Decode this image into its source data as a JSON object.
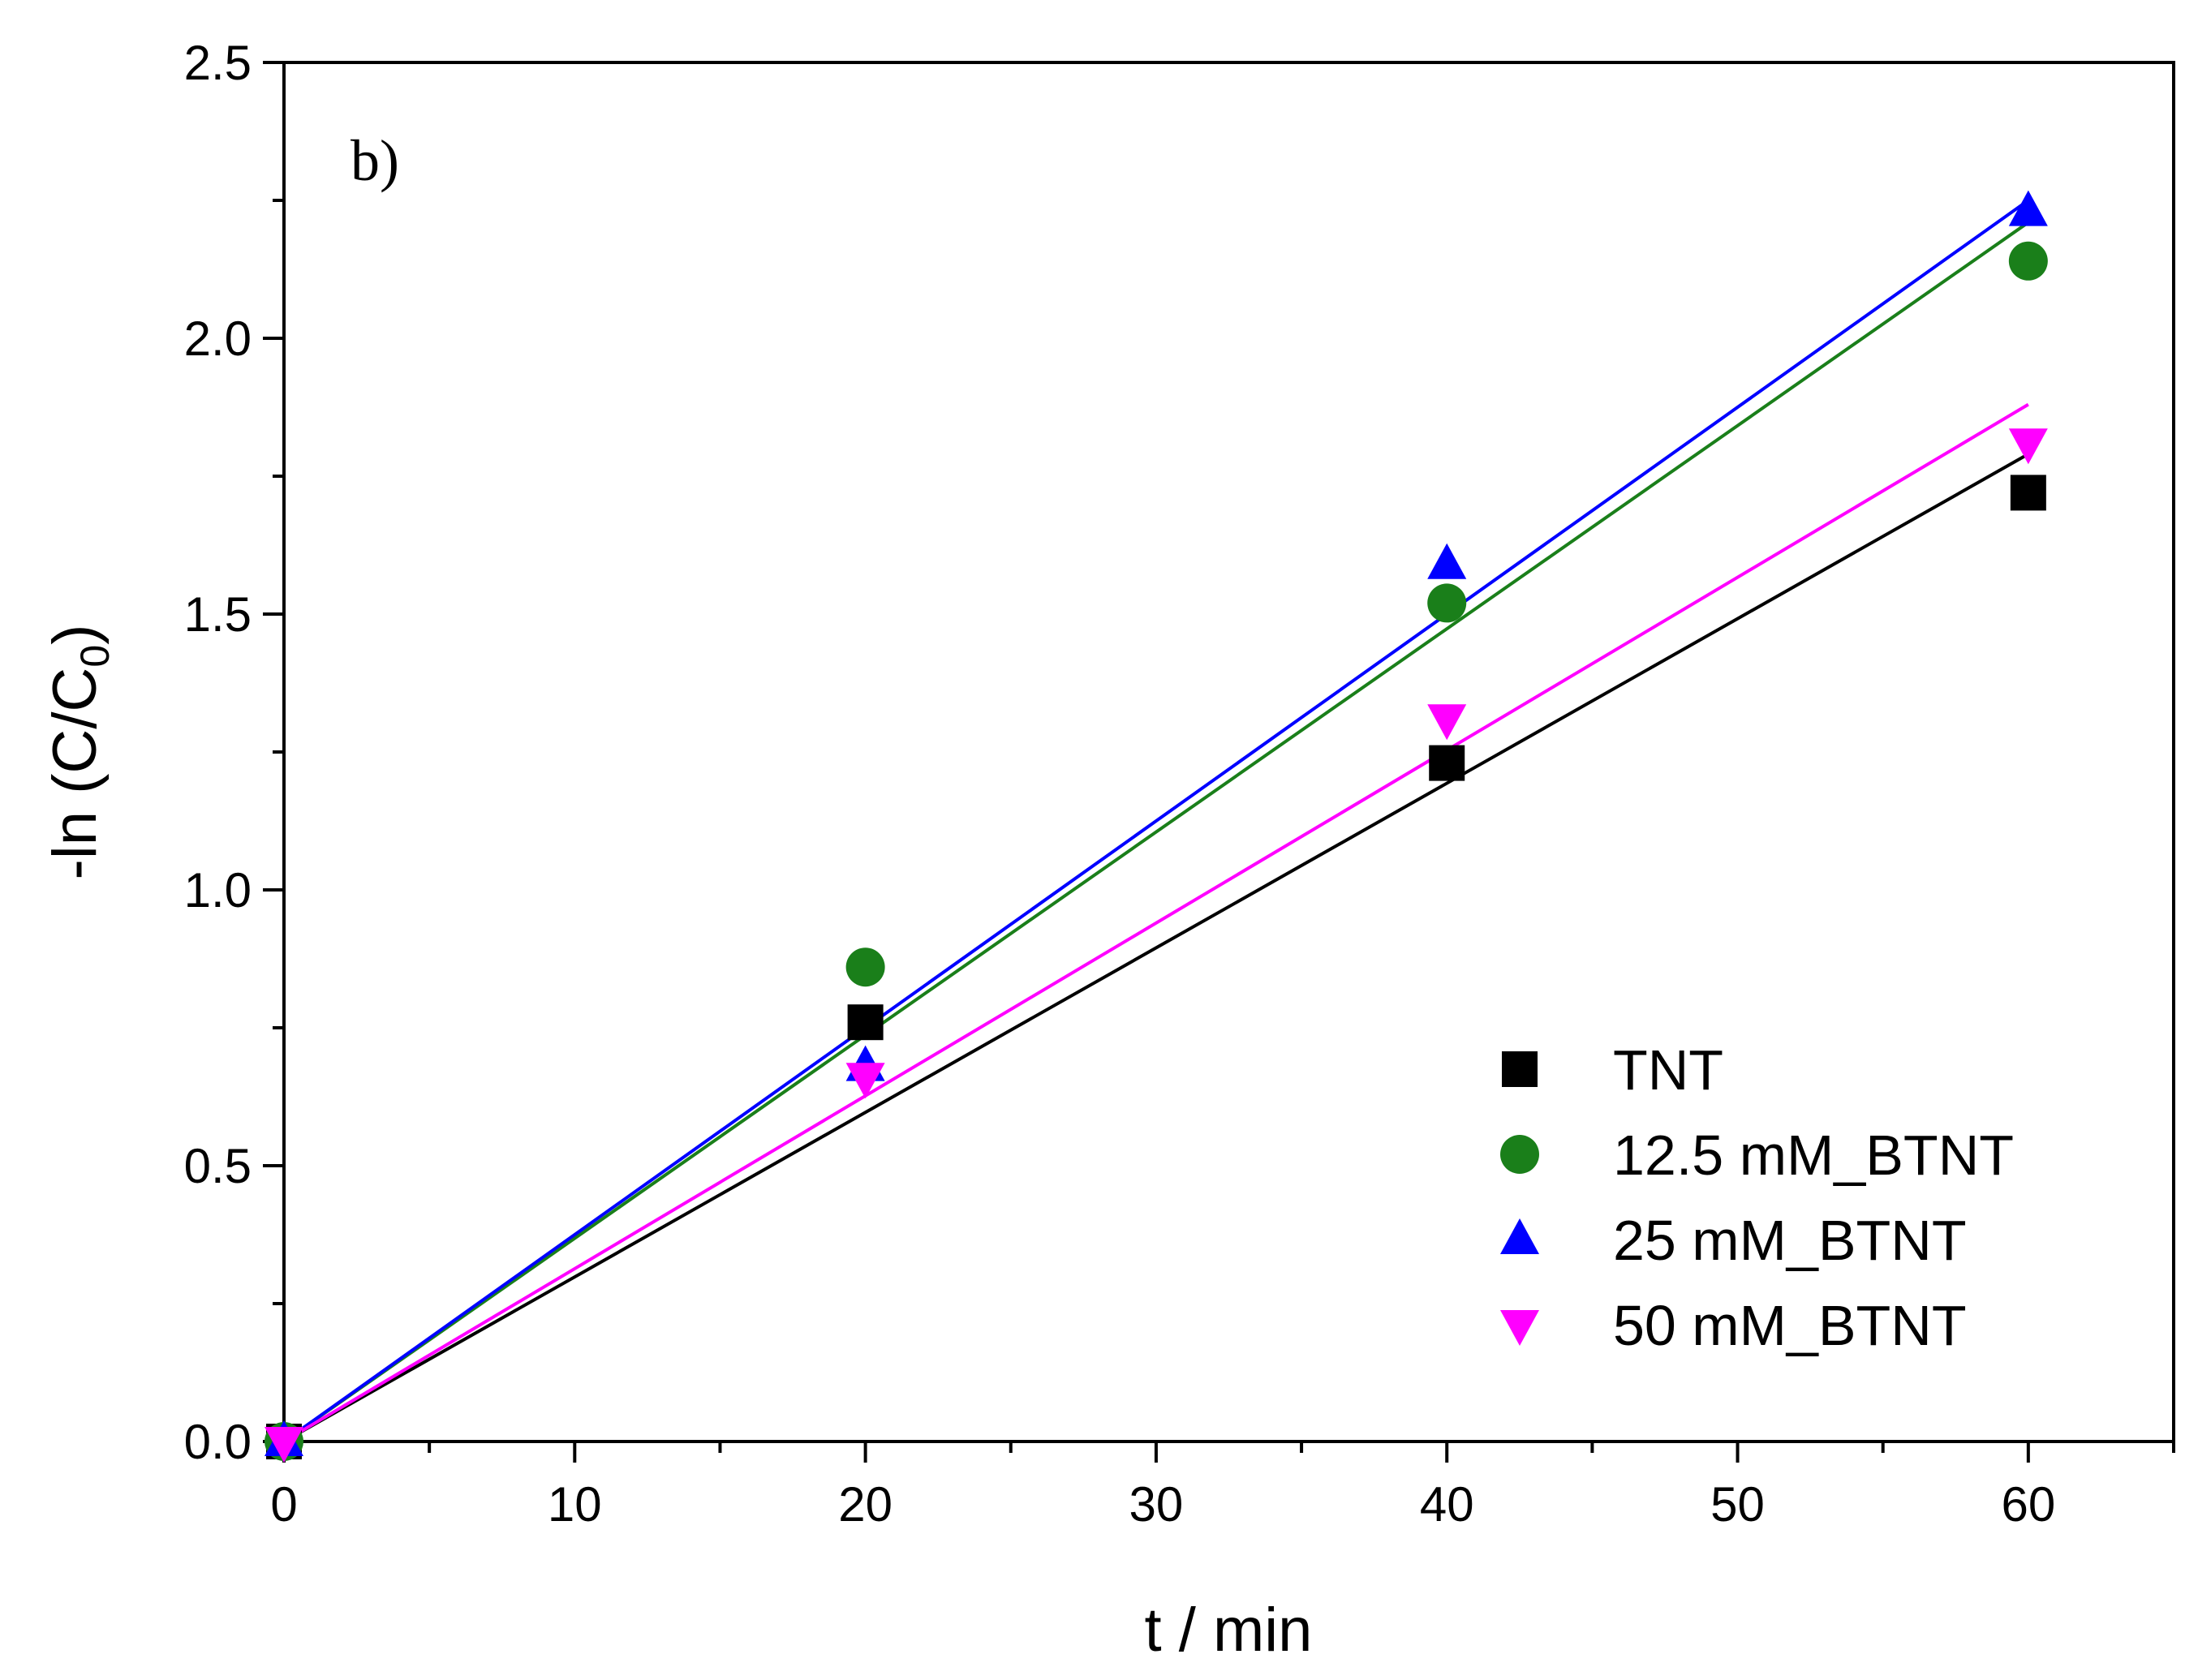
{
  "chart_data": {
    "type": "scatter",
    "panel_label": "b)",
    "xlabel": "t / min",
    "ylabel": {
      "main": "-ln (C/C",
      "sub": "0",
      "close": ")"
    },
    "xlim": [
      0,
      65
    ],
    "ylim": [
      0,
      2.5
    ],
    "x_ticks": [
      0,
      10,
      20,
      30,
      40,
      50,
      60
    ],
    "x_tick_labels": [
      "0",
      "10",
      "20",
      "30",
      "40",
      "50",
      "60"
    ],
    "x_minor_ticks": [
      5,
      15,
      25,
      35,
      45,
      55,
      65
    ],
    "y_ticks": [
      0,
      0.5,
      1.0,
      1.5,
      2.0,
      2.5
    ],
    "y_tick_labels": [
      "0.0",
      "0.5",
      "1.0",
      "1.5",
      "2.0",
      "2.5"
    ],
    "y_minor_ticks": [
      0.25,
      0.75,
      1.25,
      1.75,
      2.25
    ],
    "grid": false,
    "legend_position": "lower-right",
    "series": [
      {
        "name": "TNT",
        "marker": "square",
        "color": "#000000",
        "x": [
          0,
          20,
          40,
          60
        ],
        "y": [
          0.0,
          0.76,
          1.23,
          1.72
        ],
        "fit": {
          "x": [
            0,
            60
          ],
          "y": [
            0.0,
            1.79
          ]
        }
      },
      {
        "name": "12.5 mM_BTNT",
        "marker": "circle",
        "color": "#1a7f1a",
        "x": [
          0,
          20,
          40,
          60
        ],
        "y": [
          0.0,
          0.86,
          1.52,
          2.14
        ],
        "fit": {
          "x": [
            0,
            60
          ],
          "y": [
            0.0,
            2.21
          ]
        }
      },
      {
        "name": "25 mM_BTNT",
        "marker": "triangle-up",
        "color": "#0000ff",
        "x": [
          0,
          20,
          40,
          60
        ],
        "y": [
          0.0,
          0.68,
          1.59,
          2.23
        ],
        "fit": {
          "x": [
            0,
            60
          ],
          "y": [
            0.0,
            2.25
          ]
        }
      },
      {
        "name": "50 mM_BTNT",
        "marker": "triangle-down",
        "color": "#ff00ff",
        "x": [
          0,
          20,
          40,
          60
        ],
        "y": [
          0.0,
          0.66,
          1.31,
          1.81
        ],
        "fit": {
          "x": [
            0,
            60
          ],
          "y": [
            0.0,
            1.88
          ]
        }
      }
    ]
  }
}
